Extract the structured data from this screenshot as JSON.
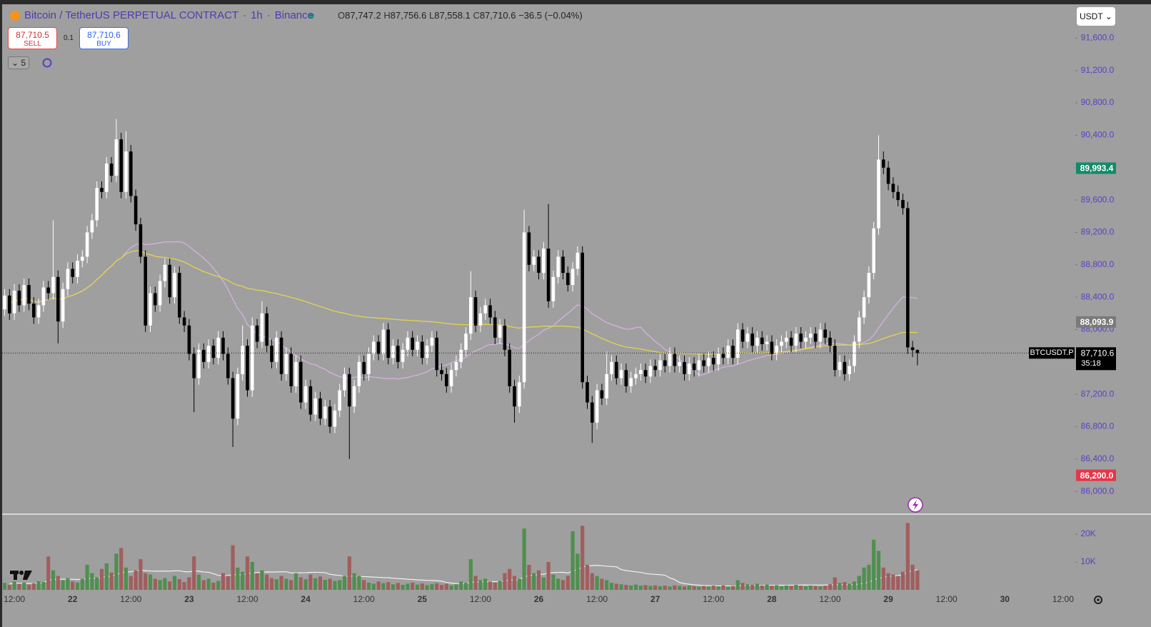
{
  "header": {
    "symbol": "Bitcoin / TetherUS PERPETUAL CONTRACT",
    "interval": "1h",
    "exchange": "Binance",
    "ohlc": [
      {
        "key": "O",
        "value": "87,747.2"
      },
      {
        "key": "H",
        "value": "87,756.6"
      },
      {
        "key": "L",
        "value": "87,558.1"
      },
      {
        "key": "C",
        "value": "87,710.6"
      }
    ],
    "change": "−36.5 (−0.04%)"
  },
  "trade": {
    "sell_price": "87,710.5",
    "sell": "SELL",
    "quantity": "0.1",
    "buy_price": "87,710.6",
    "buy": "BUY"
  },
  "indicators_count": "5",
  "currency": "USDT",
  "chart_data": {
    "type": "candlestick",
    "up_color": "#ffffff",
    "down_color": "#000000",
    "grid": false,
    "categories": [
      null,
      null,
      "12:00",
      null,
      null,
      null,
      null,
      null,
      null,
      null,
      null,
      null,
      null,
      null,
      "22",
      null,
      null,
      null,
      null,
      null,
      null,
      null,
      null,
      null,
      null,
      null,
      "12:00",
      null,
      null,
      null,
      null,
      null,
      null,
      null,
      null,
      null,
      null,
      null,
      "23",
      null,
      null,
      null,
      null,
      null,
      null,
      null,
      null,
      null,
      null,
      null,
      "12:00",
      null,
      null,
      null,
      null,
      null,
      null,
      null,
      null,
      null,
      null,
      null,
      "24",
      null,
      null,
      null,
      null,
      null,
      null,
      null,
      null,
      null,
      null,
      null,
      "12:00",
      null,
      null,
      null,
      null,
      null,
      null,
      null,
      null,
      null,
      null,
      null,
      "25",
      null,
      null,
      null,
      null,
      null,
      null,
      null,
      null,
      null,
      null,
      null,
      "12:00",
      null,
      null,
      null,
      null,
      null,
      null,
      null,
      null,
      null,
      null,
      null,
      "26",
      null,
      null,
      null,
      null,
      null,
      null,
      null,
      null,
      null,
      null,
      null,
      "12:00",
      null,
      null,
      null,
      null,
      null,
      null,
      null,
      null,
      null,
      null,
      null,
      "27",
      null,
      null,
      null,
      null,
      null,
      null,
      null,
      null,
      null,
      null,
      null,
      "12:00",
      null,
      null,
      null,
      null,
      null,
      null,
      null,
      null,
      null,
      null,
      null,
      "28",
      null,
      null,
      null,
      null,
      null,
      null,
      null,
      null,
      null,
      null,
      null,
      "12:00",
      null,
      null,
      null,
      null,
      null,
      null,
      null,
      null,
      null,
      null,
      null,
      "29",
      null,
      null,
      null,
      null,
      null,
      null,
      null,
      null,
      null,
      null,
      null,
      "12:00",
      null,
      null,
      null,
      null,
      null,
      null,
      null,
      null,
      null,
      null,
      null,
      "30",
      null,
      null,
      null,
      null,
      null,
      null,
      null,
      null,
      null,
      null,
      null,
      "12:00"
    ],
    "open": [
      88250,
      88420,
      88200,
      88480,
      88300,
      88550,
      88320,
      88150,
      88300,
      88520,
      88450,
      88650,
      88100,
      88500,
      88750,
      88650,
      88850,
      88900,
      89200,
      89350,
      89750,
      89700,
      90050,
      89900,
      90350,
      89700,
      90200,
      89650,
      89300,
      88900,
      88050,
      88450,
      88300,
      88600,
      88800,
      88400,
      88700,
      88150,
      88050,
      87700,
      87400,
      87750,
      87600,
      87800,
      87650,
      87900,
      87700,
      87400,
      86900,
      87450,
      87800,
      87250,
      88050,
      87850,
      88200,
      87800,
      87600,
      87900,
      87450,
      87700,
      87300,
      87600,
      87100,
      87300,
      86950,
      87150,
      86900,
      87050,
      86800,
      87000,
      87250,
      87450,
      87050,
      87300,
      87600,
      87450,
      87700,
      87850,
      87700,
      88000,
      87650,
      87800,
      87600,
      87750,
      87900,
      87750,
      87850,
      87650,
      87800,
      87900,
      87500,
      87450,
      87300,
      87500,
      87600,
      87750,
      87950,
      88400,
      88050,
      88200,
      88300,
      88150,
      87900,
      88050,
      87750,
      87300,
      87050,
      87350,
      89200,
      88800,
      88900,
      88700,
      89000,
      88350,
      88650,
      88900,
      88700,
      88550,
      88750,
      88950,
      87350,
      87100,
      86850,
      87250,
      87150,
      87450,
      87600,
      87400,
      87500,
      87300,
      87400,
      87450,
      87500,
      87420,
      87550,
      87500,
      87620,
      87550,
      87700,
      87550,
      87600,
      87450,
      87580,
      87500,
      87620,
      87550,
      87650,
      87570,
      87700,
      87650,
      87800,
      87650,
      88000,
      87850,
      87950,
      87800,
      87900,
      87820,
      87850,
      87700,
      87800,
      87850,
      87900,
      87800,
      87950,
      87850,
      87900,
      87950,
      87850,
      88000,
      87900,
      87800,
      87500,
      87600,
      87450,
      87550,
      87850,
      88150,
      88400,
      88700,
      89250,
      90100,
      90000,
      89800,
      89700,
      89600,
      89500,
      87780,
      87747.2,
      null,
      null,
      null,
      null,
      null,
      null,
      null,
      null,
      null,
      null,
      null,
      null,
      null,
      null,
      null,
      null,
      null,
      null,
      null,
      null,
      null,
      null,
      null,
      null,
      null,
      null,
      null,
      null,
      null,
      null
    ],
    "high": [
      88500,
      88500,
      88560,
      88560,
      88630,
      88630,
      88400,
      88380,
      88600,
      88600,
      89350,
      88730,
      88580,
      88830,
      88830,
      88930,
      88980,
      89280,
      89430,
      89830,
      89830,
      90130,
      90130,
      90600,
      90430,
      90450,
      90280,
      89730,
      89380,
      88980,
      88530,
      88530,
      88680,
      88880,
      88880,
      88780,
      88780,
      88230,
      88130,
      87780,
      87830,
      87830,
      87880,
      87880,
      87980,
      87980,
      87780,
      87480,
      87530,
      88050,
      87880,
      88150,
      88130,
      88350,
      88280,
      87880,
      87980,
      87980,
      87780,
      87780,
      87680,
      87680,
      87380,
      87380,
      87230,
      87230,
      87130,
      87130,
      87080,
      87330,
      87530,
      87530,
      87380,
      87680,
      87680,
      87780,
      87930,
      87930,
      88080,
      88080,
      87880,
      87880,
      87830,
      87980,
      87980,
      87930,
      87930,
      87880,
      87980,
      87980,
      87580,
      87530,
      87580,
      87680,
      87830,
      88030,
      88720,
      88480,
      88280,
      88380,
      88380,
      88230,
      88130,
      88130,
      87830,
      87380,
      87430,
      89480,
      89280,
      88980,
      88980,
      89080,
      89550,
      88730,
      88980,
      88980,
      88780,
      88830,
      89030,
      89030,
      87430,
      87180,
      87330,
      87330,
      87730,
      87680,
      87680,
      87580,
      87580,
      87480,
      87530,
      87580,
      87580,
      87630,
      87630,
      87700,
      87700,
      87780,
      87780,
      87680,
      87680,
      87660,
      87660,
      87700,
      87700,
      87730,
      87730,
      87780,
      87780,
      87880,
      87880,
      88080,
      88080,
      88030,
      88030,
      87980,
      87980,
      87930,
      87930,
      87880,
      87930,
      87980,
      87980,
      88030,
      88030,
      87980,
      88030,
      88030,
      88080,
      88080,
      87980,
      87880,
      87680,
      87680,
      87630,
      87930,
      88230,
      88480,
      88780,
      89330,
      90400,
      90200,
      90080,
      89880,
      89780,
      89680,
      89580,
      87860,
      87756.6,
      null,
      null,
      null,
      null,
      null,
      null,
      null,
      null,
      null,
      null,
      null,
      null,
      null,
      null,
      null,
      null,
      null,
      null,
      null,
      null,
      null,
      null,
      null,
      null,
      null,
      null,
      null,
      null,
      null,
      null
    ],
    "low": [
      88170,
      88120,
      88120,
      88220,
      88220,
      88240,
      88070,
      88070,
      88220,
      88370,
      88370,
      87830,
      88020,
      88420,
      88570,
      88570,
      88770,
      88820,
      89120,
      89270,
      89620,
      89620,
      89820,
      89820,
      89620,
      89620,
      89570,
      89220,
      88820,
      87970,
      87970,
      88220,
      88220,
      88520,
      88320,
      88320,
      88070,
      87970,
      87620,
      86980,
      87320,
      87520,
      87520,
      87570,
      87570,
      87620,
      87320,
      86550,
      86820,
      87370,
      87170,
      87170,
      87770,
      87770,
      87720,
      87520,
      87520,
      87370,
      87370,
      87220,
      87220,
      87020,
      87020,
      86870,
      86870,
      86820,
      86820,
      86720,
      86720,
      86920,
      87170,
      86400,
      86970,
      87220,
      87370,
      87370,
      87620,
      87620,
      87620,
      87570,
      87570,
      87520,
      87520,
      87670,
      87670,
      87670,
      87570,
      87570,
      87720,
      87420,
      87370,
      87220,
      87220,
      87420,
      87520,
      87670,
      87870,
      87970,
      87970,
      88120,
      88070,
      87820,
      87820,
      87670,
      87220,
      86850,
      86970,
      87270,
      88720,
      88720,
      88620,
      88620,
      88270,
      88270,
      88570,
      88620,
      88470,
      88470,
      88670,
      87270,
      87020,
      86600,
      86770,
      87070,
      87070,
      87370,
      87320,
      87320,
      87220,
      87220,
      87320,
      87370,
      87340,
      87340,
      87420,
      87420,
      87470,
      87470,
      87470,
      87470,
      87370,
      87370,
      87420,
      87420,
      87470,
      87470,
      87490,
      87490,
      87570,
      87570,
      87570,
      87570,
      87770,
      87770,
      87720,
      87720,
      87740,
      87740,
      87620,
      87620,
      87720,
      87770,
      87720,
      87720,
      87770,
      87770,
      87820,
      87770,
      87770,
      87820,
      87720,
      87420,
      87420,
      87370,
      87370,
      87470,
      87770,
      88070,
      88320,
      88620,
      89170,
      89920,
      89720,
      89620,
      89520,
      89420,
      87700,
      87660,
      87558.1,
      null,
      null,
      null,
      null,
      null,
      null,
      null,
      null,
      null,
      null,
      null,
      null,
      null,
      null,
      null,
      null,
      null,
      null,
      null,
      null,
      null,
      null,
      null,
      null,
      null,
      null,
      null,
      null,
      null,
      null
    ],
    "close": [
      88420,
      88200,
      88480,
      88300,
      88550,
      88320,
      88150,
      88300,
      88520,
      88450,
      88650,
      88100,
      88500,
      88750,
      88650,
      88850,
      88900,
      89200,
      89350,
      89750,
      89700,
      90050,
      89900,
      90350,
      89700,
      90200,
      89650,
      89300,
      88900,
      88050,
      88450,
      88300,
      88600,
      88800,
      88400,
      88700,
      88150,
      88050,
      87700,
      87400,
      87750,
      87600,
      87800,
      87650,
      87900,
      87700,
      87400,
      86900,
      87450,
      87800,
      87250,
      88050,
      87850,
      88200,
      87800,
      87600,
      87900,
      87450,
      87700,
      87300,
      87600,
      87100,
      87300,
      86950,
      87150,
      86900,
      87050,
      86800,
      87000,
      87250,
      87450,
      87050,
      87300,
      87600,
      87450,
      87700,
      87850,
      87700,
      88000,
      87650,
      87800,
      87600,
      87750,
      87900,
      87750,
      87850,
      87650,
      87800,
      87900,
      87500,
      87450,
      87300,
      87500,
      87600,
      87750,
      87950,
      88400,
      88050,
      88200,
      88300,
      88150,
      87900,
      88050,
      87750,
      87300,
      87050,
      87350,
      89200,
      88800,
      88900,
      88700,
      89000,
      88350,
      88650,
      88900,
      88700,
      88550,
      88750,
      88950,
      87350,
      87100,
      86850,
      87250,
      87150,
      87450,
      87600,
      87400,
      87500,
      87300,
      87400,
      87450,
      87500,
      87420,
      87550,
      87500,
      87620,
      87550,
      87700,
      87550,
      87600,
      87450,
      87580,
      87500,
      87620,
      87550,
      87650,
      87570,
      87700,
      87650,
      87800,
      87650,
      88000,
      87850,
      87950,
      87800,
      87900,
      87820,
      87850,
      87700,
      87800,
      87850,
      87900,
      87800,
      87950,
      87850,
      87900,
      87950,
      87850,
      88000,
      87900,
      87800,
      87500,
      87600,
      87450,
      87550,
      87850,
      88150,
      88400,
      88700,
      89250,
      90100,
      90000,
      89800,
      89700,
      89600,
      89500,
      87780,
      87747.2,
      87710.6,
      null,
      null,
      null,
      null,
      null,
      null,
      null,
      null,
      null,
      null,
      null,
      null,
      null,
      null,
      null,
      null,
      null,
      null,
      null,
      null,
      null,
      null,
      null,
      null,
      null,
      null,
      null,
      null,
      null,
      null
    ],
    "ylim": [
      85720,
      92000
    ],
    "yticks": [
      {
        "value": 86000,
        "label": "86,000.0"
      },
      {
        "value": 86400,
        "label": "86,400.0"
      },
      {
        "value": 86800,
        "label": "86,800.0"
      },
      {
        "value": 87200,
        "label": "87,200.0"
      },
      {
        "value": 87600,
        "label": "87,600.0"
      },
      {
        "value": 88000,
        "label": "88,000.0"
      },
      {
        "value": 88400,
        "label": "88,400.0"
      },
      {
        "value": 88800,
        "label": "88,800.0"
      },
      {
        "value": 89200,
        "label": "89,200.0"
      },
      {
        "value": 89600,
        "label": "89,600.0"
      },
      {
        "value": 90000,
        "label": "90,000.0"
      },
      {
        "value": 90400,
        "label": "90,400.0"
      },
      {
        "value": 90800,
        "label": "90,800.0"
      },
      {
        "value": 91200,
        "label": "91,200.0"
      },
      {
        "value": 91600,
        "label": "91,600.0"
      }
    ],
    "price_markers": [
      {
        "value": 89993.4,
        "label": "89,993.4",
        "color": "#138a6a"
      },
      {
        "value": 88093.9,
        "label": "88,093.9",
        "color": "#7a7a7a"
      },
      {
        "value": 86200,
        "label": "86,200.0",
        "color": "#e5364a"
      }
    ],
    "last_price": {
      "value": 87710.6,
      "label": "87,710.6",
      "symbol": "BTCUSDT.P",
      "countdown": "35:18"
    },
    "volume": {
      "up_color": "#4f8f4f",
      "down_color": "#a15e5e",
      "values": [
        2500,
        1800,
        3000,
        2200,
        2600,
        1900,
        2400,
        3100,
        2800,
        12000,
        7000,
        5000,
        3500,
        4200,
        3000,
        2600,
        4000,
        9000,
        6000,
        4500,
        7500,
        9500,
        6200,
        13000,
        15000,
        8000,
        5000,
        7000,
        11000,
        6000,
        5500,
        4000,
        3500,
        4200,
        3000,
        5000,
        3800,
        2800,
        4500,
        12000,
        5500,
        3500,
        4000,
        2600,
        3200,
        6000,
        5000,
        16000,
        8000,
        6500,
        12000,
        10000,
        6000,
        7000,
        5500,
        4200,
        3800,
        5000,
        4000,
        3500,
        6000,
        4500,
        3800,
        5500,
        4200,
        4800,
        3600,
        4000,
        3200,
        3500,
        5000,
        12000,
        6000,
        5000,
        3500,
        2600,
        2200,
        3000,
        2400,
        2800,
        2000,
        2500,
        1800,
        2200,
        2600,
        1900,
        2300,
        1700,
        2100,
        2400,
        1800,
        2200,
        1600,
        2000,
        3000,
        2500,
        11000,
        5000,
        3500,
        4000,
        3000,
        2600,
        3200,
        6000,
        7500,
        5000,
        4000,
        22000,
        9000,
        6000,
        7000,
        4500,
        10000,
        5500,
        4000,
        3500,
        5000,
        21000,
        13000,
        23000,
        9000,
        6000,
        5000,
        4000,
        3500,
        2500,
        2200,
        2000,
        1800,
        1600,
        1900,
        1500,
        1700,
        1400,
        1600,
        1300,
        1500,
        1200,
        1600,
        1400,
        1200,
        1500,
        1300,
        1100,
        1400,
        1200,
        1500,
        1300,
        1600,
        1200,
        1400,
        3500,
        2500,
        2000,
        1800,
        2200,
        1600,
        1900,
        1500,
        1700,
        1300,
        1600,
        1400,
        1800,
        1500,
        1300,
        1600,
        1400,
        1200,
        1500,
        2000,
        4500,
        2500,
        2800,
        2200,
        3000,
        5000,
        8000,
        9000,
        18000,
        14000,
        8000,
        6000,
        5500,
        5000,
        6500,
        24000,
        9000,
        7000,
        null,
        null,
        null,
        null,
        null,
        null,
        null,
        null,
        null,
        null,
        null,
        null,
        null,
        null,
        null,
        null,
        null,
        null,
        null,
        null,
        null,
        null,
        null,
        null,
        null,
        null,
        null,
        null,
        null,
        null
      ],
      "ylim": [
        0,
        26650
      ],
      "yticks": [
        {
          "value": 10000,
          "label": "10K"
        },
        {
          "value": 20000,
          "label": "20K"
        }
      ]
    }
  }
}
